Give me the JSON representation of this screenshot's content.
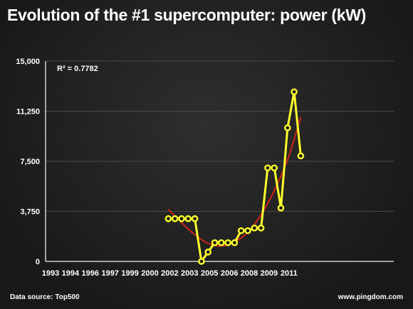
{
  "title": "Evolution of the #1 supercomputer: power (kW)",
  "footer": {
    "source": "Data source: Top500",
    "site": "www.pingdom.com"
  },
  "colors": {
    "series": "#ffff2e",
    "trend": "#cc2418",
    "grid": "#4a4a4a",
    "background": "#1b1b1b"
  },
  "chart_data": {
    "type": "line",
    "title": "Evolution of the #1 supercomputer: power (kW)",
    "annotation": "R² = 0.7782",
    "ylim": [
      0,
      15000
    ],
    "yticks": [
      0,
      3750,
      7500,
      11250,
      15000
    ],
    "ytick_labels": [
      "0",
      "3,750",
      "7,500",
      "11,250",
      "15,000"
    ],
    "xtick_labels": [
      "1993",
      "1994",
      "1996",
      "1997",
      "1999",
      "2000",
      "2002",
      "2003",
      "2005",
      "2006",
      "2008",
      "2009",
      "2011"
    ],
    "grid": true,
    "series": [
      {
        "points": [
          {
            "slot": 18,
            "value": 3200
          },
          {
            "slot": 19,
            "value": 3200
          },
          {
            "slot": 20,
            "value": 3200
          },
          {
            "slot": 21,
            "value": 3200
          },
          {
            "slot": 22,
            "value": 3200
          },
          {
            "slot": 23,
            "value": 0
          },
          {
            "slot": 24,
            "value": 700
          },
          {
            "slot": 25,
            "value": 1400
          },
          {
            "slot": 26,
            "value": 1400
          },
          {
            "slot": 27,
            "value": 1400
          },
          {
            "slot": 28,
            "value": 1400
          },
          {
            "slot": 29,
            "value": 2300
          },
          {
            "slot": 30,
            "value": 2300
          },
          {
            "slot": 31,
            "value": 2500
          },
          {
            "slot": 32,
            "value": 2500
          },
          {
            "slot": 33,
            "value": 7000
          },
          {
            "slot": 34,
            "value": 7000
          },
          {
            "slot": 35,
            "value": 4000
          },
          {
            "slot": 36,
            "value": 10000
          },
          {
            "slot": 37,
            "value": 12700
          },
          {
            "slot": 38,
            "value": 7900
          }
        ]
      }
    ],
    "trendline": {
      "type": "polynomial",
      "points": [
        {
          "slot": 18,
          "value": 3900
        },
        {
          "slot": 20,
          "value": 2900
        },
        {
          "slot": 22,
          "value": 2000
        },
        {
          "slot": 24,
          "value": 1350
        },
        {
          "slot": 26,
          "value": 1150
        },
        {
          "slot": 28,
          "value": 1450
        },
        {
          "slot": 30,
          "value": 2200
        },
        {
          "slot": 32,
          "value": 3500
        },
        {
          "slot": 34,
          "value": 5300
        },
        {
          "slot": 36,
          "value": 7600
        },
        {
          "slot": 38,
          "value": 10800
        }
      ]
    }
  }
}
